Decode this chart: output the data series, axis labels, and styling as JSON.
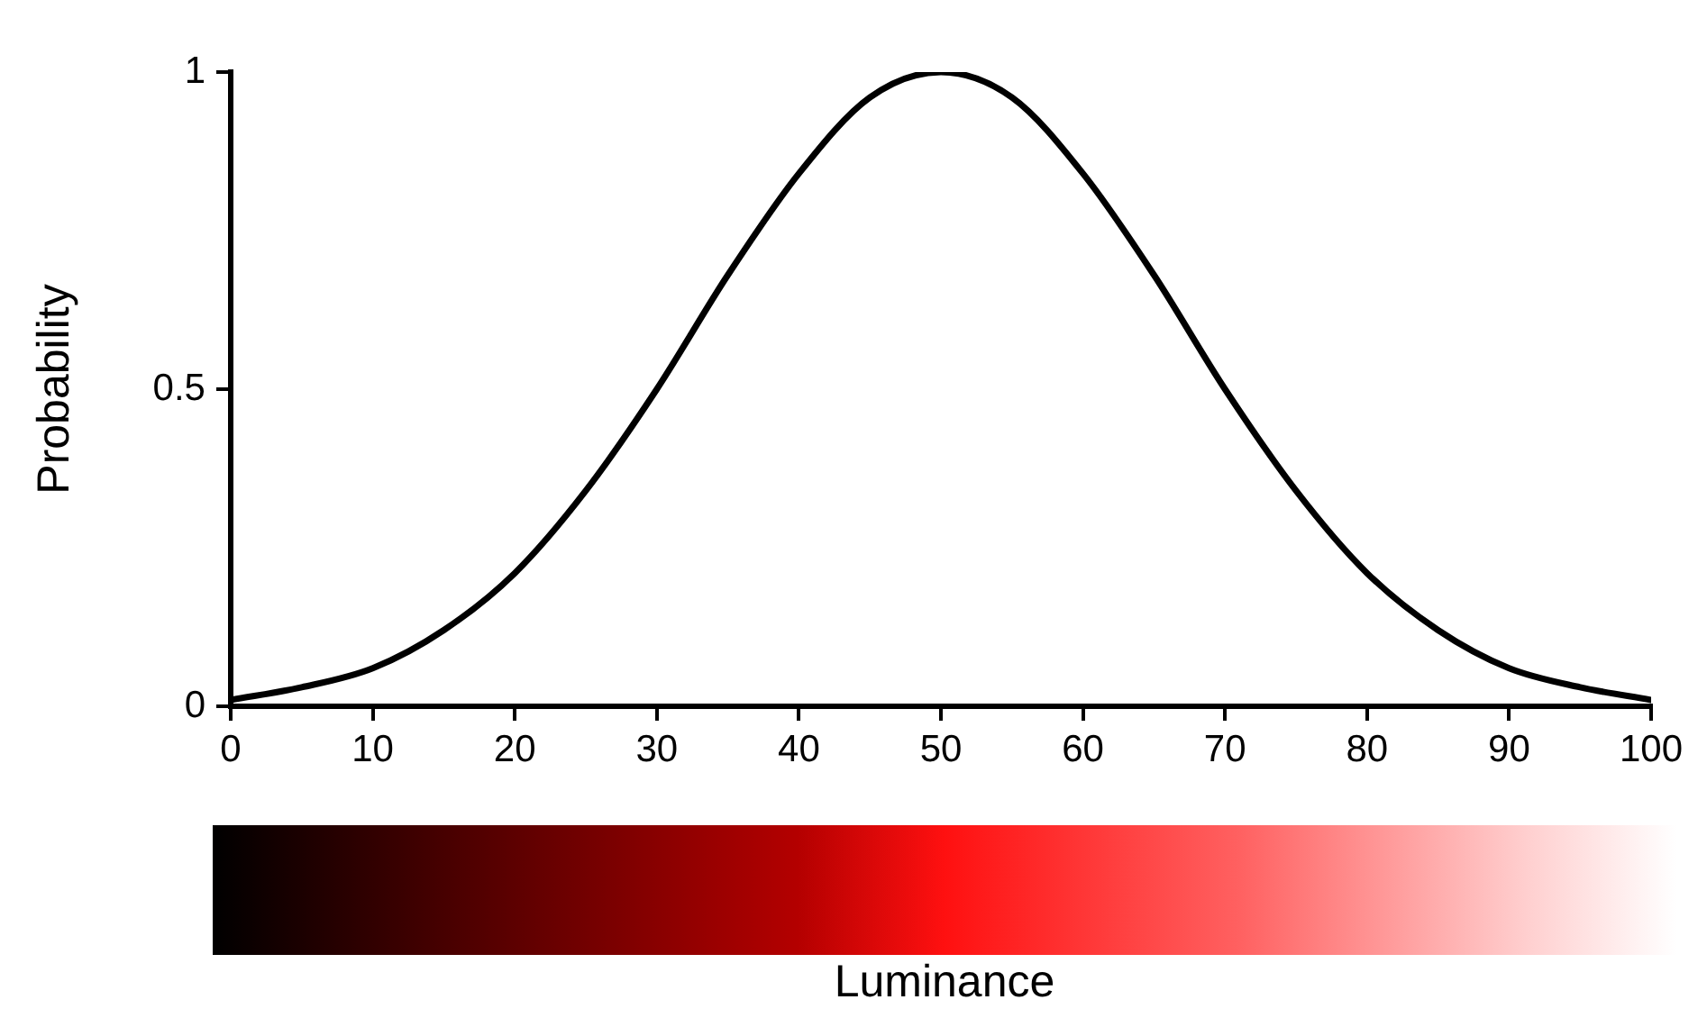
{
  "chart_data": {
    "type": "line",
    "xlabel": "Luminance",
    "ylabel": "Probability",
    "x": [
      0,
      5,
      10,
      15,
      20,
      25,
      30,
      35,
      40,
      45,
      50,
      55,
      60,
      65,
      70,
      75,
      80,
      85,
      90,
      95,
      100
    ],
    "series": [
      {
        "color": "#000000",
        "values": [
          0.01,
          0.03,
          0.06,
          0.12,
          0.21,
          0.34,
          0.5,
          0.68,
          0.84,
          0.96,
          1,
          0.96,
          0.84,
          0.68,
          0.5,
          0.34,
          0.21,
          0.12,
          0.06,
          0.03,
          0.01
        ]
      }
    ],
    "xlim": [
      0,
      100
    ],
    "xticks": [
      0,
      10,
      20,
      30,
      40,
      50,
      60,
      70,
      80,
      90,
      100
    ],
    "ylim": [
      0,
      1
    ],
    "yticks": [
      0,
      0.5,
      1
    ],
    "grid": false,
    "legend": false,
    "marker": "none",
    "line_style": "solid"
  }
}
